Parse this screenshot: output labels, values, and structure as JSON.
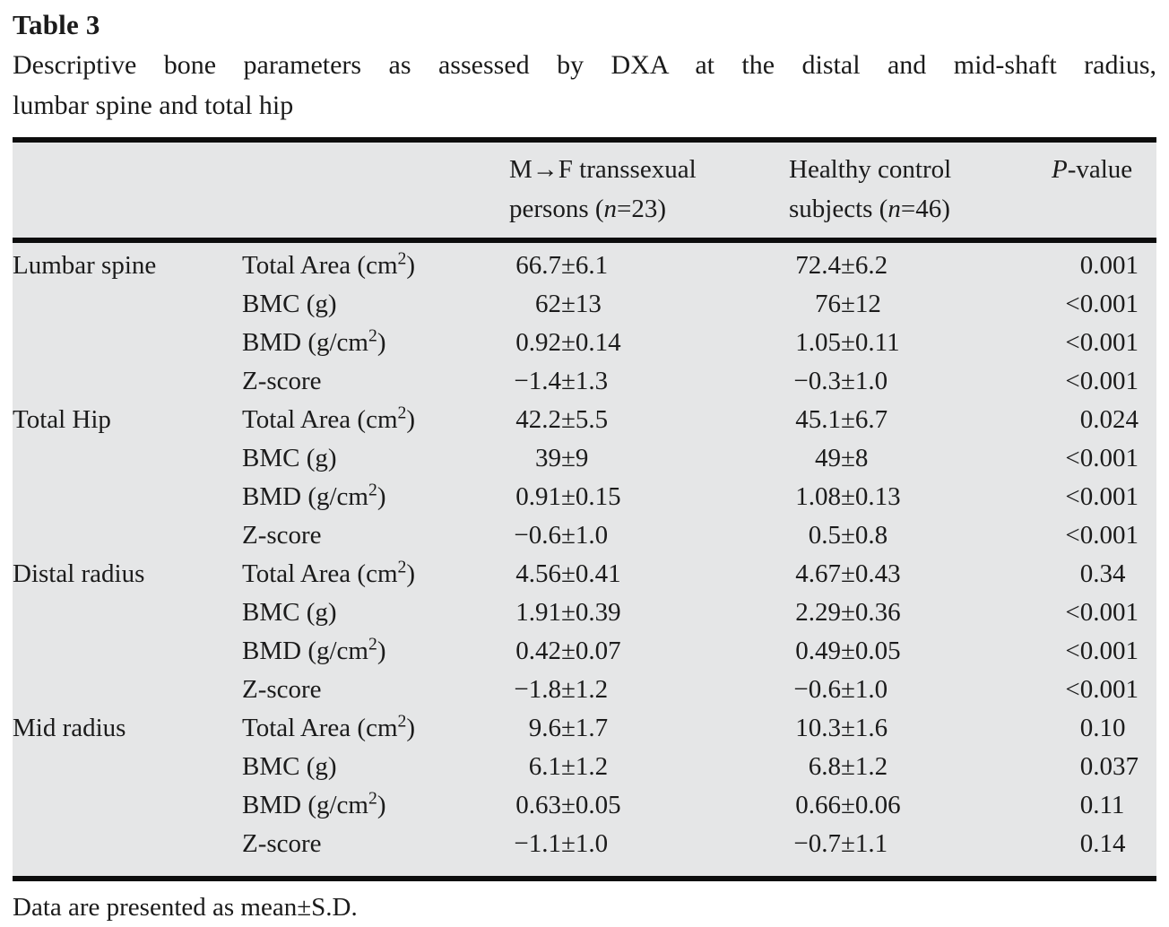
{
  "title": "Table 3",
  "caption": {
    "line1": "Descriptive bone parameters as assessed by DXA at the distal and mid-shaft radius,",
    "line2": "lumbar spine and total hip"
  },
  "symbols": {
    "pm": "±"
  },
  "table": {
    "header": {
      "mf_line1": "M→F transsexual",
      "mf_line2_pre": "persons (",
      "mf_n": "n",
      "mf_line2_post": "=23)",
      "ctrl_line1": "Healthy control",
      "ctrl_line2_pre": "subjects (",
      "ctrl_n": "n",
      "ctrl_line2_post": "=46)",
      "p_italic": "P",
      "p_rest": "-value"
    },
    "rows": [
      {
        "group": "Lumbar spine",
        "param_pre": "Total Area (cm",
        "param_sup": "2",
        "param_post": ")",
        "mf_mean": "66.7",
        "mf_sd": "6.1",
        "ctrl_mean": "72.4",
        "ctrl_sd": "6.2",
        "p_prefix": "",
        "p": "0.001"
      },
      {
        "group": "",
        "param_pre": "BMC (g)",
        "param_sup": "",
        "param_post": "",
        "mf_mean": "62",
        "mf_sd": "13",
        "ctrl_mean": "76",
        "ctrl_sd": "12",
        "p_prefix": "<",
        "p": "0.001"
      },
      {
        "group": "",
        "param_pre": "BMD (g/cm",
        "param_sup": "2",
        "param_post": ")",
        "mf_mean": "0.92",
        "mf_sd": "0.14",
        "ctrl_mean": "1.05",
        "ctrl_sd": "0.11",
        "p_prefix": "<",
        "p": "0.001"
      },
      {
        "group": "",
        "param_pre": "Z-score",
        "param_sup": "",
        "param_post": "",
        "mf_mean": "−1.4",
        "mf_sd": "1.3",
        "ctrl_mean": "−0.3",
        "ctrl_sd": "1.0",
        "p_prefix": "<",
        "p": "0.001"
      },
      {
        "group": "Total Hip",
        "param_pre": "Total Area (cm",
        "param_sup": "2",
        "param_post": ")",
        "mf_mean": "42.2",
        "mf_sd": "5.5",
        "ctrl_mean": "45.1",
        "ctrl_sd": "6.7",
        "p_prefix": "",
        "p": "0.024"
      },
      {
        "group": "",
        "param_pre": "BMC (g)",
        "param_sup": "",
        "param_post": "",
        "mf_mean": "39",
        "mf_sd": "9",
        "ctrl_mean": "49",
        "ctrl_sd": "8",
        "p_prefix": "<",
        "p": "0.001"
      },
      {
        "group": "",
        "param_pre": "BMD (g/cm",
        "param_sup": "2",
        "param_post": ")",
        "mf_mean": "0.91",
        "mf_sd": "0.15",
        "ctrl_mean": "1.08",
        "ctrl_sd": "0.13",
        "p_prefix": "<",
        "p": "0.001"
      },
      {
        "group": "",
        "param_pre": "Z-score",
        "param_sup": "",
        "param_post": "",
        "mf_mean": "−0.6",
        "mf_sd": "1.0",
        "ctrl_mean": "0.5",
        "ctrl_sd": "0.8",
        "p_prefix": "<",
        "p": "0.001"
      },
      {
        "group": "Distal radius",
        "param_pre": "Total Area (cm",
        "param_sup": "2",
        "param_post": ")",
        "mf_mean": "4.56",
        "mf_sd": "0.41",
        "ctrl_mean": "4.67",
        "ctrl_sd": "0.43",
        "p_prefix": "",
        "p": "0.34"
      },
      {
        "group": "",
        "param_pre": "BMC (g)",
        "param_sup": "",
        "param_post": "",
        "mf_mean": "1.91",
        "mf_sd": "0.39",
        "ctrl_mean": "2.29",
        "ctrl_sd": "0.36",
        "p_prefix": "<",
        "p": "0.001"
      },
      {
        "group": "",
        "param_pre": "BMD (g/cm",
        "param_sup": "2",
        "param_post": ")",
        "mf_mean": "0.42",
        "mf_sd": "0.07",
        "ctrl_mean": "0.49",
        "ctrl_sd": "0.05",
        "p_prefix": "<",
        "p": "0.001"
      },
      {
        "group": "",
        "param_pre": "Z-score",
        "param_sup": "",
        "param_post": "",
        "mf_mean": "−1.8",
        "mf_sd": "1.2",
        "ctrl_mean": "−0.6",
        "ctrl_sd": "1.0",
        "p_prefix": "<",
        "p": "0.001"
      },
      {
        "group": "Mid radius",
        "param_pre": "Total Area (cm",
        "param_sup": "2",
        "param_post": ")",
        "mf_mean": "9.6",
        "mf_sd": "1.7",
        "ctrl_mean": "10.3",
        "ctrl_sd": "1.6",
        "p_prefix": "",
        "p": "0.10"
      },
      {
        "group": "",
        "param_pre": "BMC (g)",
        "param_sup": "",
        "param_post": "",
        "mf_mean": "6.1",
        "mf_sd": "1.2",
        "ctrl_mean": "6.8",
        "ctrl_sd": "1.2",
        "p_prefix": "",
        "p": "0.037"
      },
      {
        "group": "",
        "param_pre": "BMD (g/cm",
        "param_sup": "2",
        "param_post": ")",
        "mf_mean": "0.63",
        "mf_sd": "0.05",
        "ctrl_mean": "0.66",
        "ctrl_sd": "0.06",
        "p_prefix": "",
        "p": "0.11"
      },
      {
        "group": "",
        "param_pre": "Z-score",
        "param_sup": "",
        "param_post": "",
        "mf_mean": "−1.1",
        "mf_sd": "1.0",
        "ctrl_mean": "−0.7",
        "ctrl_sd": "1.1",
        "p_prefix": "",
        "p": "0.14"
      }
    ]
  },
  "footnote": "Data are presented as mean±S.D."
}
